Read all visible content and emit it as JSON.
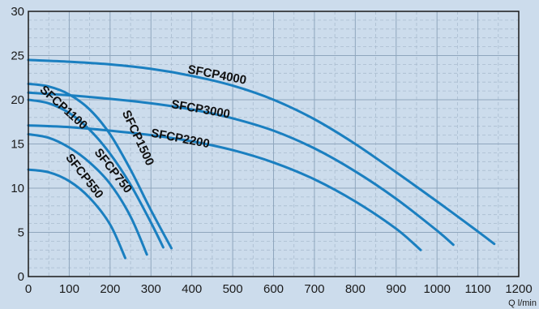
{
  "chart_data": {
    "type": "line",
    "title": "",
    "xlabel": "Q l/min",
    "ylabel": "",
    "xlim": [
      0,
      1200
    ],
    "ylim": [
      0,
      30
    ],
    "x_ticks": [
      "0",
      "100",
      "200",
      "300",
      "400",
      "500",
      "600",
      "700",
      "800",
      "900",
      "1000",
      "1100",
      "1200"
    ],
    "y_ticks": [
      "0",
      "5",
      "10",
      "15",
      "20",
      "25",
      "30"
    ],
    "grid": true,
    "colors": {
      "line": "#1a7fc0",
      "background": "#ccdcec",
      "grid_major": "#8fa6bd",
      "grid_minor": "#a9bccf"
    },
    "series": [
      {
        "name": "SFCP4000",
        "x": [
          0,
          100,
          200,
          300,
          400,
          500,
          600,
          700,
          800,
          900,
          1000,
          1100,
          1140
        ],
        "y": [
          24.5,
          24.3,
          24.0,
          23.5,
          22.7,
          21.6,
          20.0,
          17.8,
          15.0,
          11.8,
          8.5,
          5.1,
          3.7
        ]
      },
      {
        "name": "SFCP3000",
        "x": [
          0,
          100,
          200,
          300,
          400,
          500,
          600,
          700,
          800,
          900,
          1000,
          1040
        ],
        "y": [
          20.8,
          20.5,
          20.1,
          19.6,
          18.9,
          17.9,
          16.5,
          14.5,
          11.9,
          8.8,
          5.2,
          3.6
        ]
      },
      {
        "name": "SFCP2200",
        "x": [
          0,
          100,
          200,
          300,
          400,
          500,
          600,
          700,
          800,
          900,
          960
        ],
        "y": [
          17.1,
          16.9,
          16.5,
          16.0,
          15.3,
          14.3,
          12.9,
          11.0,
          8.5,
          5.4,
          3.0
        ]
      },
      {
        "name": "SFCP1500",
        "x": [
          0,
          50,
          100,
          150,
          200,
          250,
          300,
          350
        ],
        "y": [
          21.8,
          21.5,
          20.6,
          18.9,
          16.1,
          12.1,
          7.5,
          3.2
        ]
      },
      {
        "name": "SFCP1100",
        "x": [
          0,
          50,
          100,
          150,
          200,
          250,
          300,
          330
        ],
        "y": [
          20.0,
          19.6,
          18.5,
          16.6,
          13.9,
          10.4,
          6.1,
          3.3
        ]
      },
      {
        "name": "SFCP750",
        "x": [
          0,
          50,
          100,
          150,
          200,
          250,
          290
        ],
        "y": [
          16.1,
          15.7,
          14.6,
          12.9,
          10.5,
          6.8,
          2.5
        ]
      },
      {
        "name": "SFCP550",
        "x": [
          0,
          50,
          100,
          150,
          200,
          237
        ],
        "y": [
          12.1,
          11.8,
          10.8,
          8.9,
          5.9,
          2.1
        ]
      }
    ],
    "annotations": [
      {
        "text": "SFCP4000",
        "series": "SFCP4000",
        "x": 460,
        "y": 22.4,
        "angle": 11
      },
      {
        "text": "SFCP3000",
        "series": "SFCP3000",
        "x": 420,
        "y": 18.5,
        "angle": 10
      },
      {
        "text": "SFCP2200",
        "series": "SFCP2200",
        "x": 370,
        "y": 15.2,
        "angle": 11
      },
      {
        "text": "SFCP1100",
        "series": "SFCP1100",
        "x": 80,
        "y": 18.8,
        "angle": 42
      },
      {
        "text": "SFCP1500",
        "series": "SFCP1500",
        "x": 260,
        "y": 15.5,
        "angle": 65
      },
      {
        "text": "SFCP750",
        "series": "SFCP750",
        "x": 200,
        "y": 11.7,
        "angle": 52
      },
      {
        "text": "SFCP550",
        "series": "SFCP550",
        "x": 130,
        "y": 11.1,
        "angle": 52
      }
    ]
  }
}
